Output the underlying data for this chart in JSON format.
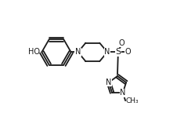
{
  "bg_color": "#ffffff",
  "line_color": "#1a1a1a",
  "line_width": 1.3,
  "font_size": 7.0,
  "figsize": [
    2.35,
    1.49
  ],
  "dpi": 100,
  "xlim": [
    0.0,
    1.0
  ],
  "ylim": [
    0.05,
    0.95
  ]
}
